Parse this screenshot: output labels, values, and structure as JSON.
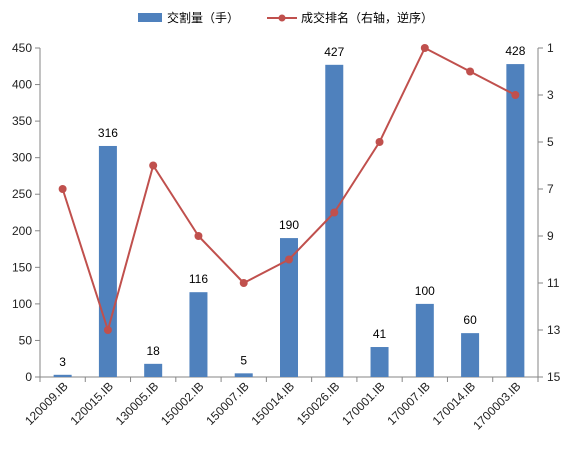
{
  "chart_data": {
    "type": "bar+line",
    "categories": [
      "120009.IB",
      "120015.IB",
      "130005.IB",
      "150002.IB",
      "150007.IB",
      "150014.IB",
      "150026.IB",
      "170001.IB",
      "170007.IB",
      "170014.IB",
      "1700003.IB"
    ],
    "series": [
      {
        "name": "交割量（手）",
        "type": "bar",
        "axis": "left",
        "color": "#4f81bd",
        "values": [
          3,
          316,
          18,
          116,
          5,
          190,
          427,
          41,
          100,
          60,
          428
        ]
      },
      {
        "name": "成交排名（右轴，逆序）",
        "type": "line",
        "axis": "right",
        "color": "#c0504d",
        "values": [
          7,
          13,
          6,
          9,
          11,
          10,
          8,
          5,
          1,
          2,
          3
        ]
      }
    ],
    "data_labels": [
      "3",
      "316",
      "18",
      "116",
      "5",
      "190",
      "427",
      "41",
      "100",
      "60",
      "428"
    ],
    "y_left": {
      "ylim": [
        0,
        450
      ],
      "ticks": [
        "0",
        "50",
        "100",
        "150",
        "200",
        "250",
        "300",
        "350",
        "400",
        "450"
      ]
    },
    "y_right": {
      "ylim": [
        1,
        15
      ],
      "reversed": true,
      "ticks": [
        "1",
        "3",
        "5",
        "7",
        "9",
        "11",
        "13",
        "15"
      ]
    },
    "legend_position": "top",
    "grid": false
  }
}
